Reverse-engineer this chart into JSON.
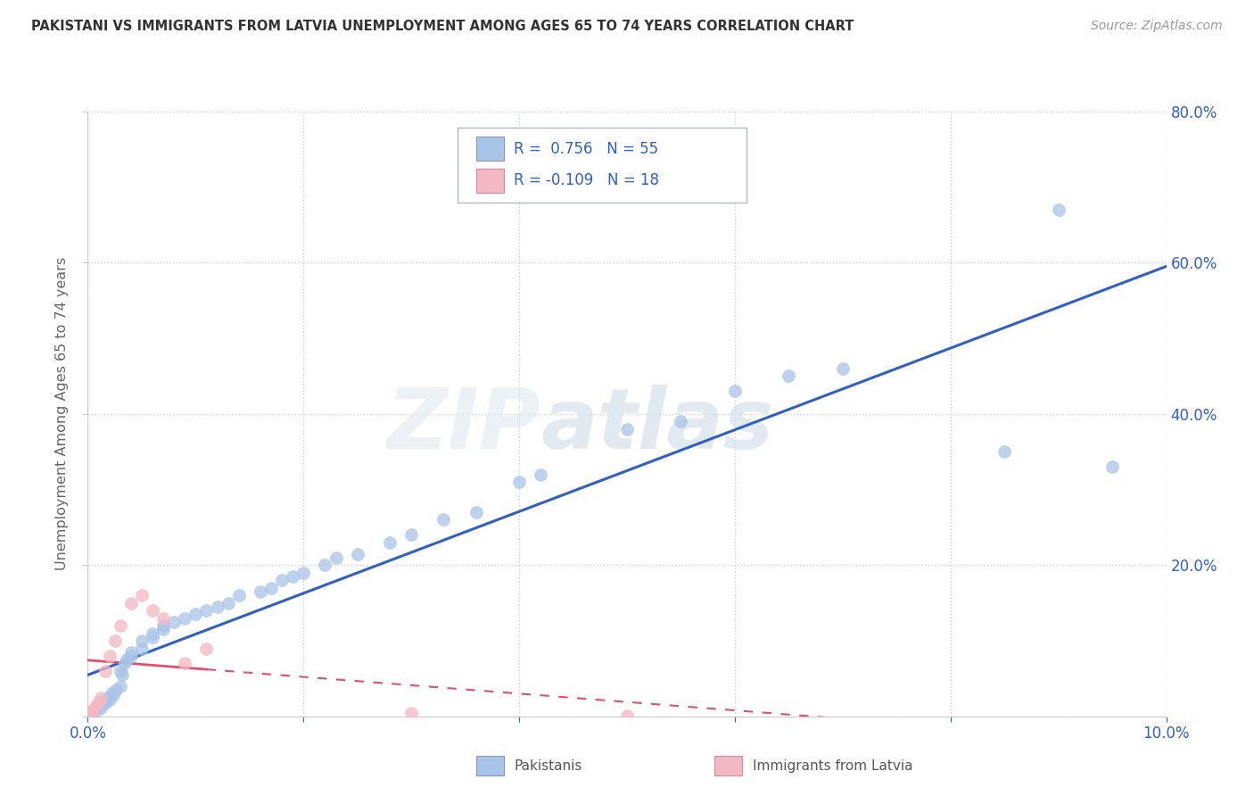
{
  "title": "PAKISTANI VS IMMIGRANTS FROM LATVIA UNEMPLOYMENT AMONG AGES 65 TO 74 YEARS CORRELATION CHART",
  "source": "Source: ZipAtlas.com",
  "ylabel": "Unemployment Among Ages 65 to 74 years",
  "xlabel_pakistani": "Pakistanis",
  "xlabel_latvian": "Immigrants from Latvia",
  "pakistani_R": 0.756,
  "pakistani_N": 55,
  "latvian_R": -0.109,
  "latvian_N": 18,
  "pakistani_color": "#a8c4e8",
  "latvian_color": "#f4b8c4",
  "pakistani_line_color": "#3060c0",
  "latvian_line_color": "#e05070",
  "background_color": "#ffffff",
  "grid_color": "#d0d0d0",
  "xlim": [
    0.0,
    0.1
  ],
  "ylim": [
    0.0,
    0.8
  ],
  "pakistani_x": [
    0.0002,
    0.0004,
    0.0006,
    0.0008,
    0.001,
    0.0012,
    0.0014,
    0.0016,
    0.0018,
    0.002,
    0.0022,
    0.0024,
    0.0026,
    0.003,
    0.003,
    0.0032,
    0.0034,
    0.0036,
    0.004,
    0.004,
    0.005,
    0.005,
    0.006,
    0.006,
    0.007,
    0.007,
    0.008,
    0.009,
    0.01,
    0.011,
    0.012,
    0.013,
    0.014,
    0.016,
    0.017,
    0.018,
    0.019,
    0.02,
    0.022,
    0.023,
    0.025,
    0.028,
    0.03,
    0.033,
    0.036,
    0.04,
    0.042,
    0.05,
    0.055,
    0.06,
    0.065,
    0.07,
    0.085,
    0.09,
    0.095
  ],
  "pakistani_y": [
    0.005,
    0.003,
    0.01,
    0.008,
    0.015,
    0.012,
    0.02,
    0.018,
    0.025,
    0.022,
    0.03,
    0.028,
    0.035,
    0.04,
    0.06,
    0.055,
    0.07,
    0.075,
    0.08,
    0.085,
    0.09,
    0.1,
    0.11,
    0.105,
    0.115,
    0.12,
    0.125,
    0.13,
    0.135,
    0.14,
    0.145,
    0.15,
    0.16,
    0.165,
    0.17,
    0.18,
    0.185,
    0.19,
    0.2,
    0.21,
    0.215,
    0.23,
    0.24,
    0.26,
    0.27,
    0.31,
    0.32,
    0.38,
    0.39,
    0.43,
    0.45,
    0.46,
    0.35,
    0.67,
    0.33
  ],
  "latvian_x": [
    0.0002,
    0.0004,
    0.0006,
    0.0008,
    0.001,
    0.0012,
    0.0016,
    0.002,
    0.0025,
    0.003,
    0.004,
    0.005,
    0.006,
    0.007,
    0.009,
    0.011,
    0.03,
    0.05
  ],
  "latvian_y": [
    0.005,
    0.008,
    0.01,
    0.015,
    0.02,
    0.025,
    0.06,
    0.08,
    0.1,
    0.12,
    0.15,
    0.16,
    0.14,
    0.13,
    0.07,
    0.09,
    0.005,
    0.001
  ]
}
